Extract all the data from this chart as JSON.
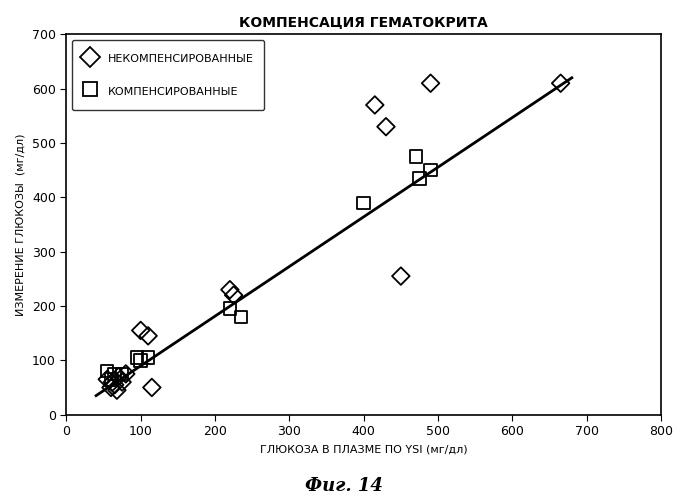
{
  "title": "КОМПЕНСАЦИЯ ГЕМАТОКРИТА",
  "xlabel": "ГЛЮКОЗА В ПЛАЗМЕ ПО YSI (мг/дл)",
  "ylabel": "ИЗМЕРЕНИЕ ГЛЮКОЗЫ  (мг/дл)",
  "caption": "Фиг. 14",
  "xlim": [
    0,
    800
  ],
  "ylim": [
    0,
    700
  ],
  "xticks": [
    0,
    100,
    200,
    300,
    400,
    500,
    600,
    700,
    800
  ],
  "yticks": [
    0,
    100,
    200,
    300,
    400,
    500,
    600,
    700
  ],
  "diamond_x": [
    55,
    60,
    62,
    65,
    68,
    70,
    75,
    80,
    100,
    110,
    115,
    220,
    225,
    415,
    430,
    450,
    490,
    665
  ],
  "diamond_y": [
    65,
    50,
    60,
    55,
    45,
    70,
    60,
    75,
    155,
    145,
    50,
    230,
    220,
    570,
    530,
    255,
    610,
    610
  ],
  "square_x": [
    55,
    60,
    65,
    75,
    95,
    100,
    110,
    220,
    235,
    400,
    470,
    475,
    490
  ],
  "square_y": [
    80,
    65,
    75,
    75,
    105,
    100,
    105,
    195,
    180,
    390,
    475,
    435,
    450
  ],
  "line_x": [
    40,
    680
  ],
  "line_y": [
    35,
    620
  ],
  "marker_size": 80,
  "line_color": "#000000",
  "marker_color": "#000000",
  "background_color": "#ffffff",
  "legend_diamond_label": "НЕКОМПЕНСИРОВАННЫЕ",
  "legend_square_label": "КОМПЕНСИРОВАННЫЕ",
  "title_fontsize": 10,
  "axis_fontsize": 8,
  "tick_fontsize": 9,
  "caption_fontsize": 13
}
